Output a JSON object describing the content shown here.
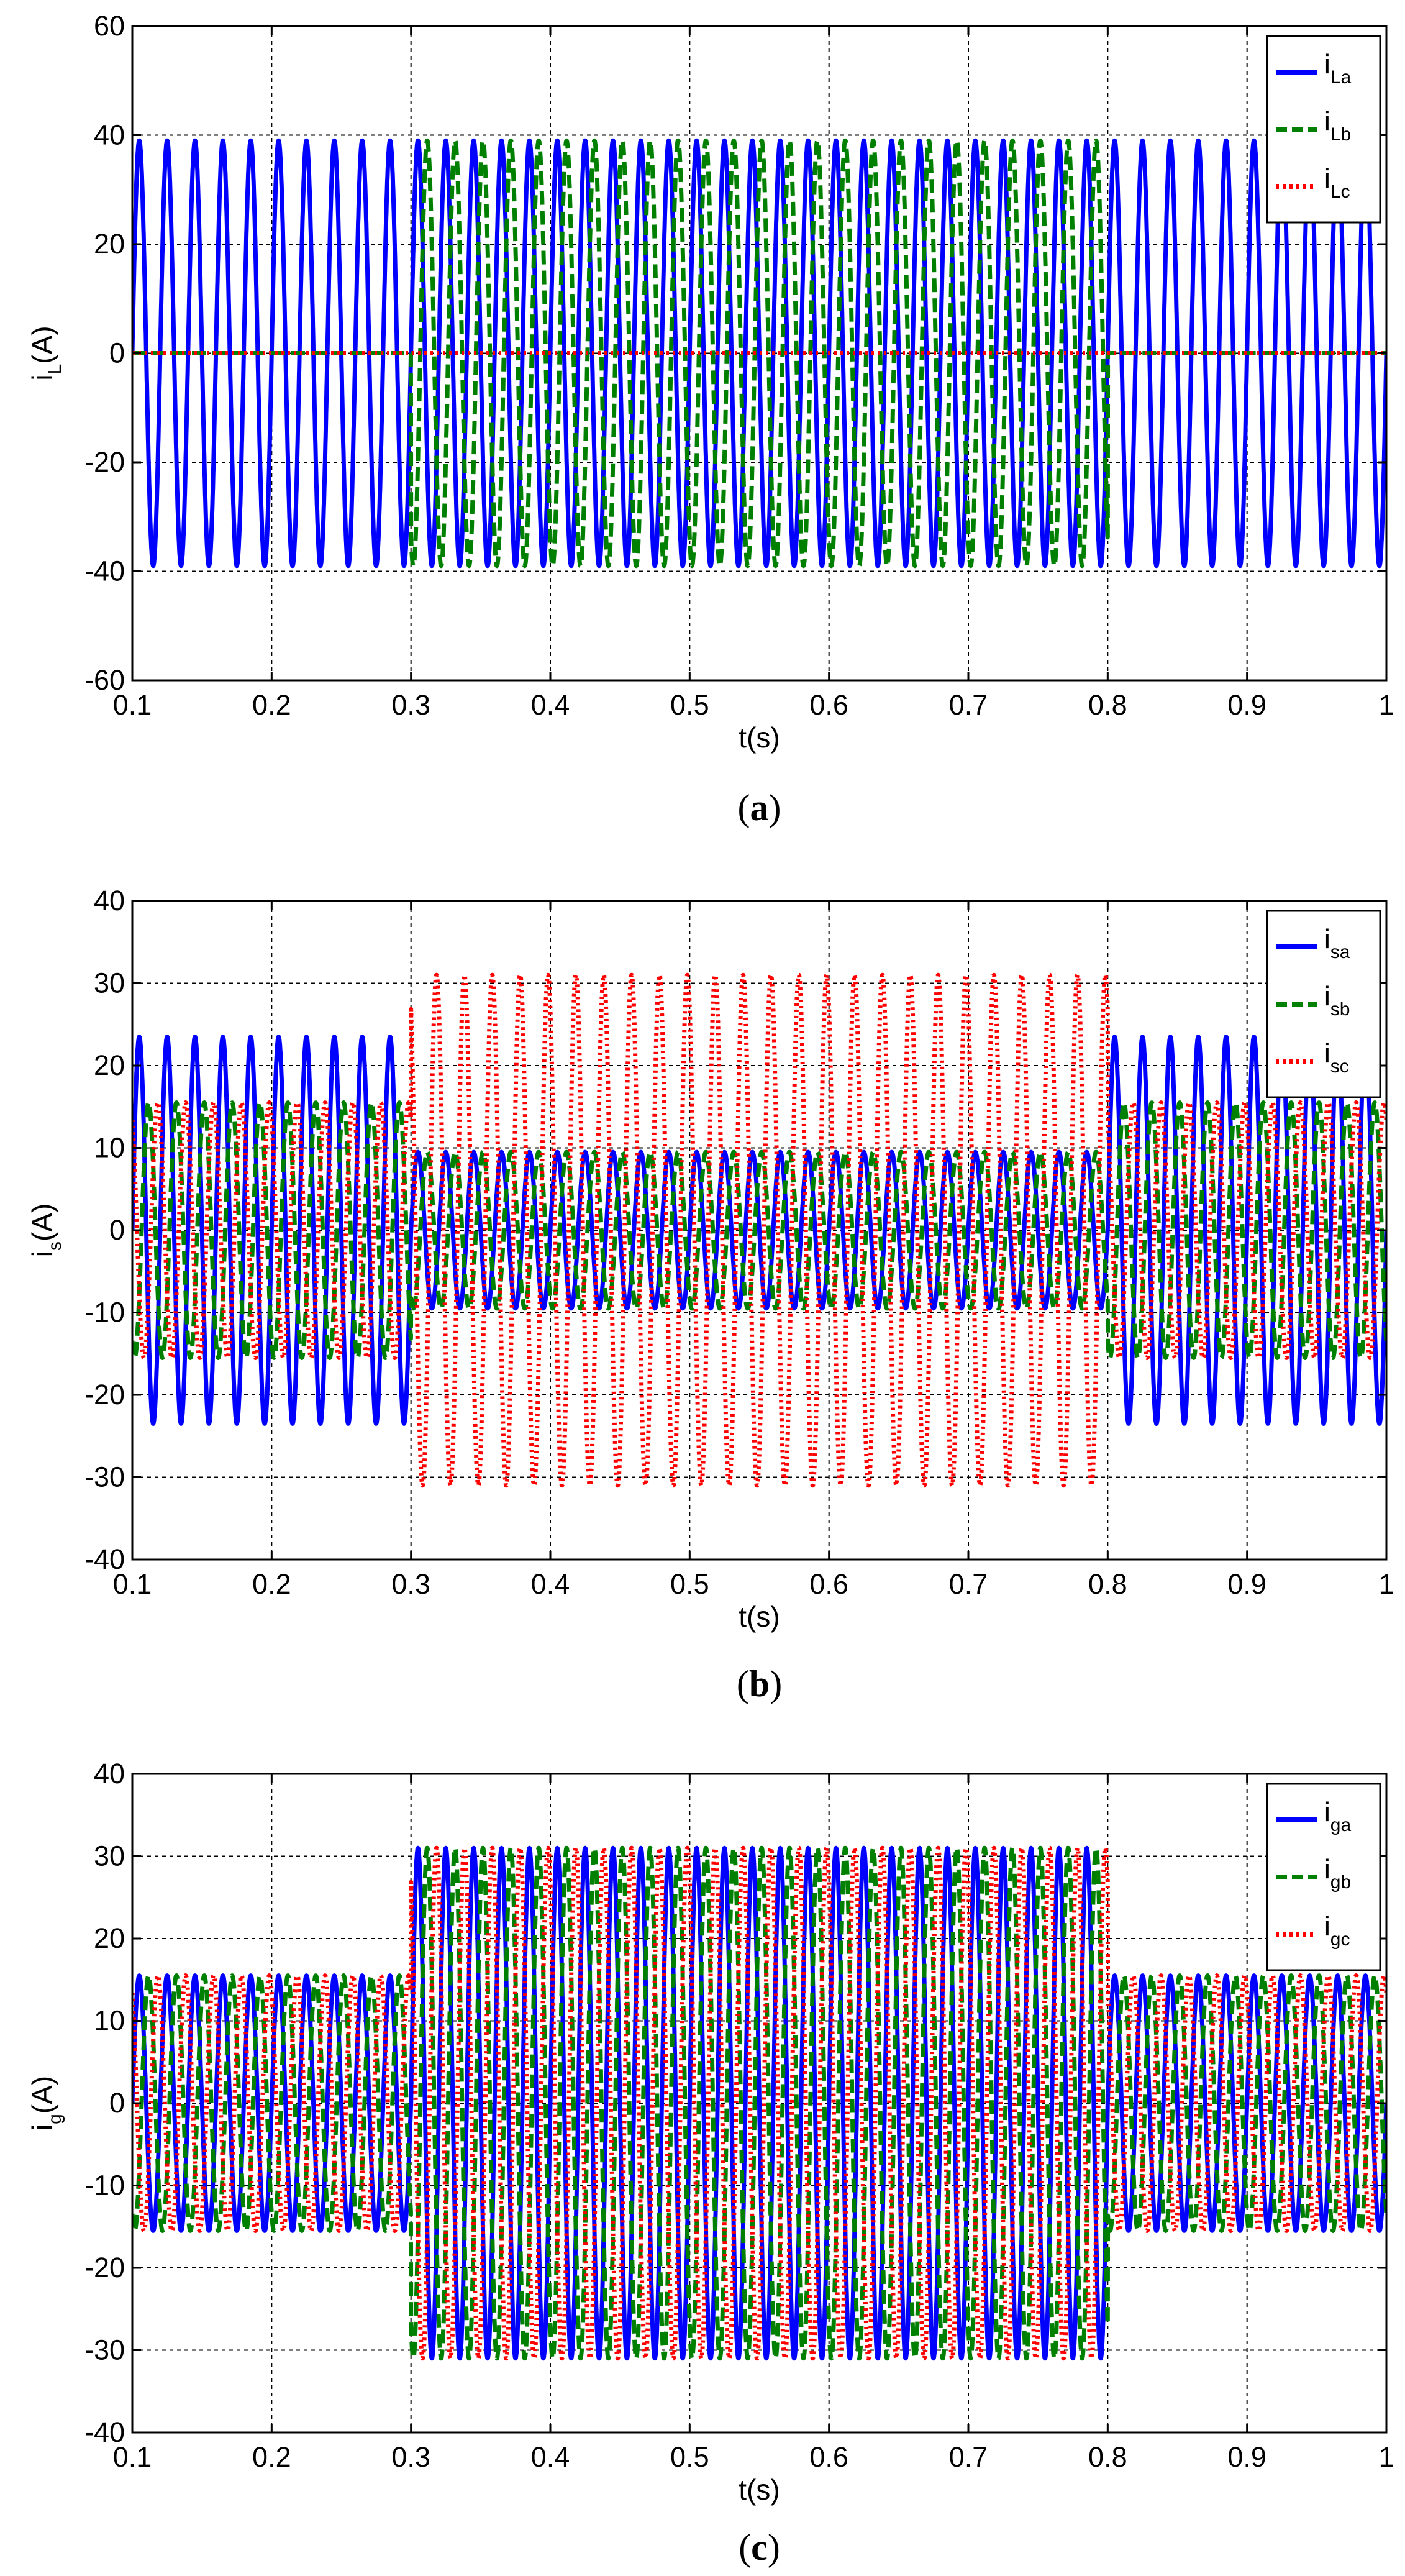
{
  "chart_data": [
    {
      "type": "line",
      "panel": "a",
      "caption": "a",
      "xlabel": "t(s)",
      "ylabel_main": "i",
      "ylabel_sub": "L",
      "ylabel_unit": "(A)",
      "xlim": [
        0.1,
        1.0
      ],
      "ylim": [
        -60,
        60
      ],
      "xticks": [
        "0.1",
        "0.2",
        "0.3",
        "0.4",
        "0.5",
        "0.6",
        "0.7",
        "0.8",
        "0.9",
        "1"
      ],
      "yticks": [
        "-60",
        "-40",
        "-20",
        "0",
        "20",
        "40",
        "60"
      ],
      "frequency_hz": 50,
      "series": [
        {
          "name": "i_La",
          "label_main": "i",
          "label_sub": "La",
          "color": "#0000ff",
          "dash": "solid",
          "phase_deg": 0,
          "segments": [
            [
              0.1,
              1.0,
              39
            ]
          ]
        },
        {
          "name": "i_Lb",
          "label_main": "i",
          "label_sub": "Lb",
          "color": "#008000",
          "dash": "dashed",
          "phase_deg": -120,
          "segments": [
            [
              0.1,
              0.3,
              0
            ],
            [
              0.3,
              0.8,
              39
            ],
            [
              0.8,
              1.0,
              0
            ]
          ]
        },
        {
          "name": "i_Lc",
          "label_main": "i",
          "label_sub": "Lc",
          "color": "#ff0000",
          "dash": "dotted",
          "phase_deg": 120,
          "segments": [
            [
              0.1,
              1.0,
              0
            ]
          ]
        }
      ]
    },
    {
      "type": "line",
      "panel": "b",
      "caption": "b",
      "xlabel": "t(s)",
      "ylabel_main": "i",
      "ylabel_sub": "s",
      "ylabel_unit": "(A)",
      "xlim": [
        0.1,
        1.0
      ],
      "ylim": [
        -40,
        40
      ],
      "xticks": [
        "0.1",
        "0.2",
        "0.3",
        "0.4",
        "0.5",
        "0.6",
        "0.7",
        "0.8",
        "0.9",
        "1"
      ],
      "yticks": [
        "-40",
        "-30",
        "-20",
        "-10",
        "0",
        "10",
        "20",
        "30",
        "40"
      ],
      "frequency_hz": 50,
      "series": [
        {
          "name": "i_sa",
          "label_main": "i",
          "label_sub": "sa",
          "color": "#0000ff",
          "dash": "solid",
          "phase_deg": 0,
          "segments": [
            [
              0.1,
              0.3,
              23.5
            ],
            [
              0.3,
              0.8,
              9.5
            ],
            [
              0.8,
              1.0,
              23.5
            ]
          ]
        },
        {
          "name": "i_sb",
          "label_main": "i",
          "label_sub": "sb",
          "color": "#008000",
          "dash": "dashed",
          "phase_deg": -120,
          "segments": [
            [
              0.1,
              0.3,
              15.5
            ],
            [
              0.3,
              0.8,
              9.5
            ],
            [
              0.8,
              1.0,
              15.5
            ]
          ]
        },
        {
          "name": "i_sc",
          "label_main": "i",
          "label_sub": "sc",
          "color": "#ff0000",
          "dash": "dotted",
          "phase_deg": 120,
          "segments": [
            [
              0.1,
              0.3,
              15.5
            ],
            [
              0.3,
              0.8,
              31
            ],
            [
              0.8,
              1.0,
              15.5
            ]
          ]
        }
      ]
    },
    {
      "type": "line",
      "panel": "c",
      "caption": "c",
      "xlabel": "t(s)",
      "ylabel_main": "i",
      "ylabel_sub": "g",
      "ylabel_unit": "(A)",
      "xlim": [
        0.1,
        1.0
      ],
      "ylim": [
        -40,
        40
      ],
      "xticks": [
        "0.1",
        "0.2",
        "0.3",
        "0.4",
        "0.5",
        "0.6",
        "0.7",
        "0.8",
        "0.9",
        "1"
      ],
      "yticks": [
        "-40",
        "-30",
        "-20",
        "-10",
        "0",
        "10",
        "20",
        "30",
        "40"
      ],
      "frequency_hz": 50,
      "series": [
        {
          "name": "i_ga",
          "label_main": "i",
          "label_sub": "ga",
          "color": "#0000ff",
          "dash": "solid",
          "phase_deg": 0,
          "segments": [
            [
              0.1,
              0.3,
              15.5
            ],
            [
              0.3,
              0.8,
              31
            ],
            [
              0.8,
              1.0,
              15.5
            ]
          ]
        },
        {
          "name": "i_gb",
          "label_main": "i",
          "label_sub": "gb",
          "color": "#008000",
          "dash": "dashed",
          "phase_deg": -120,
          "segments": [
            [
              0.1,
              0.3,
              15.5
            ],
            [
              0.3,
              0.8,
              31
            ],
            [
              0.8,
              1.0,
              15.5
            ]
          ]
        },
        {
          "name": "i_gc",
          "label_main": "i",
          "label_sub": "gc",
          "color": "#ff0000",
          "dash": "dotted",
          "phase_deg": 120,
          "segments": [
            [
              0.1,
              0.3,
              15.5
            ],
            [
              0.3,
              0.8,
              31
            ],
            [
              0.8,
              1.0,
              15.5
            ]
          ]
        }
      ]
    }
  ]
}
